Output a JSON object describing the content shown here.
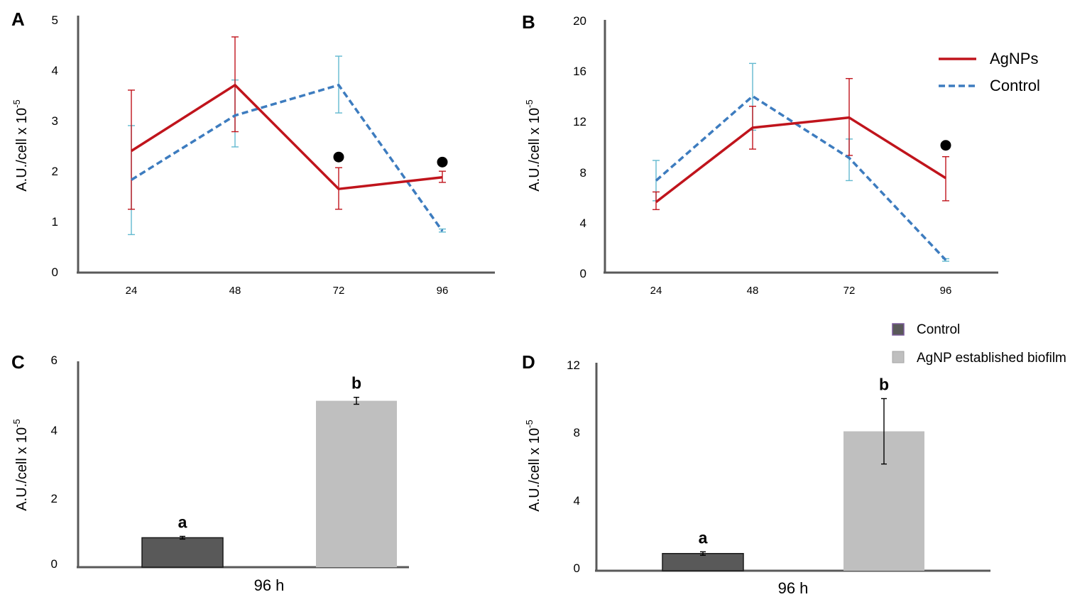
{
  "chart_data": [
    {
      "panel": "A",
      "type": "line",
      "x": [
        "24",
        "48",
        "72",
        "96"
      ],
      "ylim": [
        0,
        5
      ],
      "yticks": [
        "0",
        "1",
        "2",
        "3",
        "4",
        "5"
      ],
      "ylabel": "A.U./cell x 10",
      "ylabel_exp": "-5",
      "series": [
        {
          "name": "AgNPs",
          "color": "#c0141c",
          "style": "solid",
          "values": [
            2.4,
            3.7,
            1.65,
            1.88
          ],
          "err_lo": [
            1.25,
            2.78,
            1.25,
            1.78
          ],
          "err_hi": [
            3.6,
            4.65,
            2.07,
            2.0
          ]
        },
        {
          "name": "Control",
          "color": "#3d7cbf",
          "style": "dashed",
          "values": [
            1.83,
            3.1,
            3.7,
            0.82
          ],
          "err_lo": [
            0.75,
            2.48,
            3.15,
            0.8
          ],
          "err_hi": [
            2.9,
            3.8,
            4.27,
            0.86
          ],
          "err_color": "#62b9cf"
        }
      ],
      "markers": [
        {
          "x": "72",
          "y": 2.28
        },
        {
          "x": "96",
          "y": 2.18
        }
      ]
    },
    {
      "panel": "B",
      "type": "line",
      "x": [
        "24",
        "48",
        "72",
        "96"
      ],
      "ylim": [
        0,
        20
      ],
      "yticks": [
        "0",
        "4",
        "8",
        "12",
        "16",
        "20"
      ],
      "ylabel": "A.U./cell x 10",
      "ylabel_exp": "-5",
      "series": [
        {
          "name": "AgNPs",
          "color": "#c0141c",
          "style": "solid",
          "values": [
            5.6,
            11.5,
            12.3,
            7.5
          ],
          "err_lo": [
            5.0,
            9.8,
            9.3,
            5.7
          ],
          "err_hi": [
            6.4,
            13.2,
            15.4,
            9.2
          ]
        },
        {
          "name": "Control",
          "color": "#3d7cbf",
          "style": "dashed",
          "values": [
            7.3,
            14.0,
            9.1,
            1.0
          ],
          "err_lo": [
            5.7,
            11.3,
            7.3,
            0.9
          ],
          "err_hi": [
            8.9,
            16.6,
            10.6,
            1.1
          ],
          "err_color": "#62b9cf"
        }
      ],
      "markers": [
        {
          "x": "96",
          "y": 10.1
        }
      ],
      "legend": [
        "AgNPs",
        "Control"
      ]
    },
    {
      "panel": "C",
      "type": "bar",
      "categories": [
        "Control",
        "AgNP established biofilm"
      ],
      "xlabel": "96 h",
      "values": [
        0.85,
        4.8
      ],
      "err": [
        0.04,
        0.1
      ],
      "sig": [
        "a",
        "b"
      ],
      "colors": [
        "#595959",
        "#bfbfbf"
      ],
      "ylim": [
        0,
        6
      ],
      "yticks": [
        "0",
        "2",
        "4",
        "6"
      ],
      "ylabel": "A.U./cell x 10",
      "ylabel_exp": "-5"
    },
    {
      "panel": "D",
      "type": "bar",
      "categories": [
        "Control",
        "AgNP established biofilm"
      ],
      "xlabel": "96 h",
      "values": [
        1.0,
        8.1
      ],
      "err": [
        0.1,
        1.9
      ],
      "sig": [
        "a",
        "b"
      ],
      "colors": [
        "#595959",
        "#bfbfbf"
      ],
      "ylim": [
        0,
        12
      ],
      "yticks": [
        "0",
        "4",
        "8",
        "12"
      ],
      "ylabel": "A.U./cell x 10",
      "ylabel_exp": "-5",
      "legend": [
        "Control",
        "AgNP established biofilm"
      ]
    }
  ]
}
